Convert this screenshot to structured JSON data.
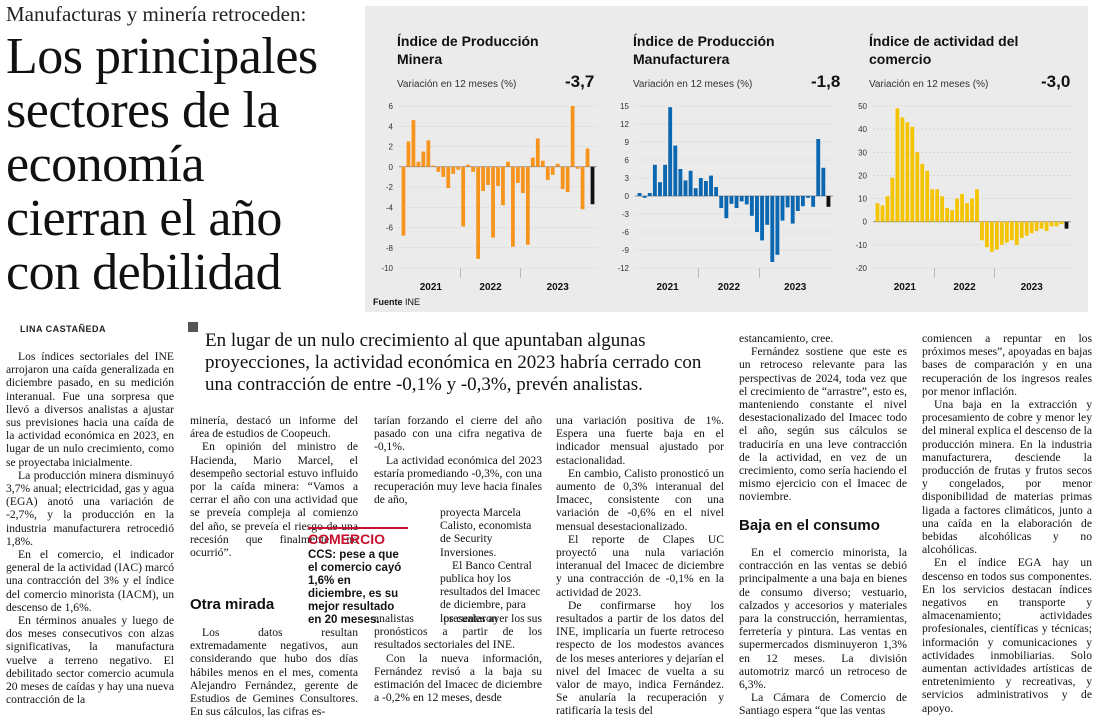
{
  "kicker": "Manufacturas y minería retroceden:",
  "headline": "Los principales sectores de la economía cierran el año con debilidad",
  "byline": "LINA CASTAÑEDA",
  "deck": "En lugar de un nulo crecimiento al que apuntaban algunas proyecciones, la actividad económica en 2023 habría cerrado con una contracción de entre -0,1% y -0,3%, prevén analistas.",
  "source_label": "Fuente",
  "source_value": "INE",
  "box": {
    "label": "COMERCIO",
    "quote": "CCS: pese a que el comercio cayó 1,6% en diciembre, es su mejor resultado en 20 meses."
  },
  "col1": [
    "Los índices sectoriales del INE arrojaron una caída generalizada en diciembre pasado, en su medición interanual. Fue una sorpresa que llevó a diversos analistas a ajustar sus previsiones hacia una caída de la actividad económica en 2023, en lugar de un nulo crecimiento, como se proyectaba inicialmente.",
    "La producción minera disminuyó 3,7% anual; electricidad, gas y agua (EGA) anotó una variación de -2,7%, y la producción en la industria manufacturera retrocedió 1,8%.",
    "En el comercio, el indicador general de la actividad (IAC) marcó una contracción del 3% y el índice del comercio minorista (IACM), un descenso de 1,6%.",
    "En términos anuales y luego de dos meses consecutivos con alzas significativas, la manufactura vuelve a terreno negativo. El debilitado sector comercio acumula 20 meses de caídas y hay una nueva contracción de la"
  ],
  "col2_top": [
    "minería, destacó un informe del área de estudios de Coopeuch.",
    "En opinión del ministro de Hacienda, Mario Marcel, el desempeño sectorial estuvo influido por la caída minera: “Vamos a cerrar el año con una actividad que se preveía compleja al comienzo del año, se preveía el riesgo de una recesión que finalmente no ocurrió”."
  ],
  "col2_head": "Otra mirada",
  "col2_bottom": [
    "Los datos resultan extremadamente negativos, aun considerando que hubo dos días hábiles menos en el mes, comenta Alejandro Fernández, gerente de Estudios de Gemines Consultores. En sus cálculos, las cifras es-"
  ],
  "col3_top": [
    "tarían forzando el cierre del año pasado con una cifra negativa de -0,1%.",
    "La actividad económica del 2023 estaría promediando -0,3%, con una recuperación muy leve hacia finales de año,"
  ],
  "col3_side": "proyecta Marcela Calisto, economista de Security Inversiones.",
  "col3_side2": "El Banco Central publica hoy los resultados del Imacec de diciembre, para los cuales ayer los",
  "col3_bottom": [
    "analistas presentaron sus pronósticos a partir de los resultados sectoriales del INE.",
    "Con la nueva información, Fernández revisó a la baja su estimación del Imacec de diciembre a -0,2% en 12 meses, desde"
  ],
  "col4": [
    "una variación positiva de 1%. Espera una fuerte baja en el indicador mensual ajustado por estacionalidad.",
    "En cambio, Calisto pronosticó un aumento de 0,3% interanual del Imacec, consistente con una variación de -0,6% en el nivel mensual desestacionalizado.",
    "El reporte de Clapes UC proyectó una nula variación interanual del Imacec de diciembre y una contracción de -0,1% en la actividad de 2023.",
    "De confirmarse hoy los resultados a partir de los datos del INE, implicaría un fuerte retroceso respecto de los modestos avances de los meses anteriores y dejarían el nivel del Imacec de vuelta a su valor de mayo, indica Fernández. Se anularía la recuperación y ratificaría la tesis del"
  ],
  "col5_top": [
    "estancamiento, cree.",
    "Fernández sostiene que este es un retroceso relevante para las perspectivas de 2024, toda vez que el crecimiento de “arrastre”, esto es, manteniendo constante el nivel desestacionalizado del Imacec todo el año, según sus cálculos se traduciría en una leve contracción de la actividad, en vez de un crecimiento, como sería haciendo el mismo ejercicio con el Imacec de noviembre."
  ],
  "col5_head": "Baja en el consumo",
  "col5_bottom": [
    "En el comercio minorista, la contracción en las ventas se debió principalmente a una baja en bienes de consumo diverso; vestuario, calzados y accesorios y materiales para la construcción, herramientas, ferretería y pintura. Las ventas en supermercados disminuyeron 1,3% en 12 meses. La división automotriz marcó un retroceso de 6,3%.",
    "La Cámara de Comercio de Santiago espera “que las ventas"
  ],
  "col6": [
    "comiencen a repuntar en los próximos meses”, apoyadas en bajas bases de comparación y en una recuperación de los ingresos reales por menor inflación.",
    "Una baja en la extracción y procesamiento de cobre y menor ley del mineral explica el descenso de la producción minera. En la industria manufacturera, desciende la producción de frutas y frutos secos y congelados, por menor disponibilidad de materias primas ligada a factores climáticos, junto a una caída en la elaboración de bebidas alcohólicas y no alcohólicas.",
    "En el índice EGA hay un descenso en todos sus componentes. En los servicios destacan índices negativos en transporte y almacenamiento; actividades profesionales, científicas y técnicas; información y comunicaciones y actividades inmobiliarias. Solo aumentan actividades artísticas de entretenimiento y recreativas, y servicios administrativos y de apoyo."
  ],
  "chart_data": [
    {
      "type": "bar",
      "title": "Índice de Producción Minera",
      "subtitle": "Variación en 12 meses (%)",
      "latest_label": "-3,7",
      "color": "#f7941d",
      "last_color": "#111111",
      "ylim": [
        -10,
        6
      ],
      "yticks": [
        "6",
        "4",
        "2",
        "0",
        "-2",
        "-4",
        "-6",
        "-8",
        "-10"
      ],
      "ytick_values": [
        6,
        4,
        2,
        0,
        -2,
        -4,
        -6,
        -8,
        -10
      ],
      "years": [
        "2021",
        "2022",
        "2023"
      ],
      "values": [
        -6.8,
        2.5,
        4.6,
        0.5,
        1.5,
        2.6,
        0.1,
        -0.5,
        -1.0,
        -2.1,
        -0.7,
        -0.3,
        -5.9,
        0.2,
        -0.5,
        -9.1,
        -2.4,
        -1.8,
        -7.0,
        -1.9,
        -3.8,
        0.5,
        -7.9,
        -1.6,
        -2.6,
        -7.7,
        0.9,
        2.8,
        0.6,
        -1.3,
        -0.8,
        0.3,
        -2.2,
        -2.5,
        6.0,
        -0.2,
        -4.2,
        1.8,
        -3.7
      ]
    },
    {
      "type": "bar",
      "title": "Índice de Producción Manufacturera",
      "subtitle": "Variación en 12 meses (%)",
      "latest_label": "-1,8",
      "color": "#0a67b0",
      "last_color": "#111111",
      "ylim": [
        -12,
        15
      ],
      "yticks": [
        "15",
        "12",
        "9",
        "6",
        "3",
        "0",
        "-3",
        "-6",
        "-9",
        "-12"
      ],
      "ytick_values": [
        15,
        12,
        9,
        6,
        3,
        0,
        -3,
        -6,
        -9,
        -12
      ],
      "years": [
        "2021",
        "2022",
        "2023"
      ],
      "values": [
        0.5,
        -0.3,
        0.5,
        5.2,
        2.3,
        5.2,
        14.8,
        8.4,
        4.5,
        2.6,
        4.2,
        1.3,
        3.0,
        2.5,
        3.4,
        1.5,
        -2.0,
        -3.7,
        -1.3,
        -2.0,
        -0.9,
        -1.4,
        -3.3,
        -6.0,
        -7.4,
        -4.8,
        -11.0,
        -9.8,
        -4.1,
        -1.9,
        -4.6,
        -2.5,
        -1.7,
        -0.3,
        -1.8,
        9.5,
        4.7,
        -1.8
      ]
    },
    {
      "type": "bar",
      "title": "Índice de actividad del comercio",
      "subtitle": "Variación en 12 meses (%)",
      "latest_label": "-3,0",
      "color": "#f5c400",
      "last_color": "#111111",
      "ylim": [
        -20,
        50
      ],
      "yticks": [
        "50",
        "40",
        "30",
        "20",
        "10",
        "0",
        "-10",
        "-20"
      ],
      "ytick_values": [
        50,
        40,
        30,
        20,
        10,
        0,
        -10,
        -20
      ],
      "years": [
        "2021",
        "2022",
        "2023"
      ],
      "values": [
        8,
        7,
        11,
        19,
        49,
        45,
        43,
        41,
        30,
        25,
        22,
        14,
        14,
        11,
        6,
        5,
        10,
        12,
        8,
        10,
        14,
        -8,
        -11,
        -13,
        -12,
        -10,
        -9,
        -8,
        -10,
        -7,
        -6,
        -5,
        -4,
        -3,
        -4,
        -2,
        -2,
        -1,
        -3
      ]
    }
  ]
}
